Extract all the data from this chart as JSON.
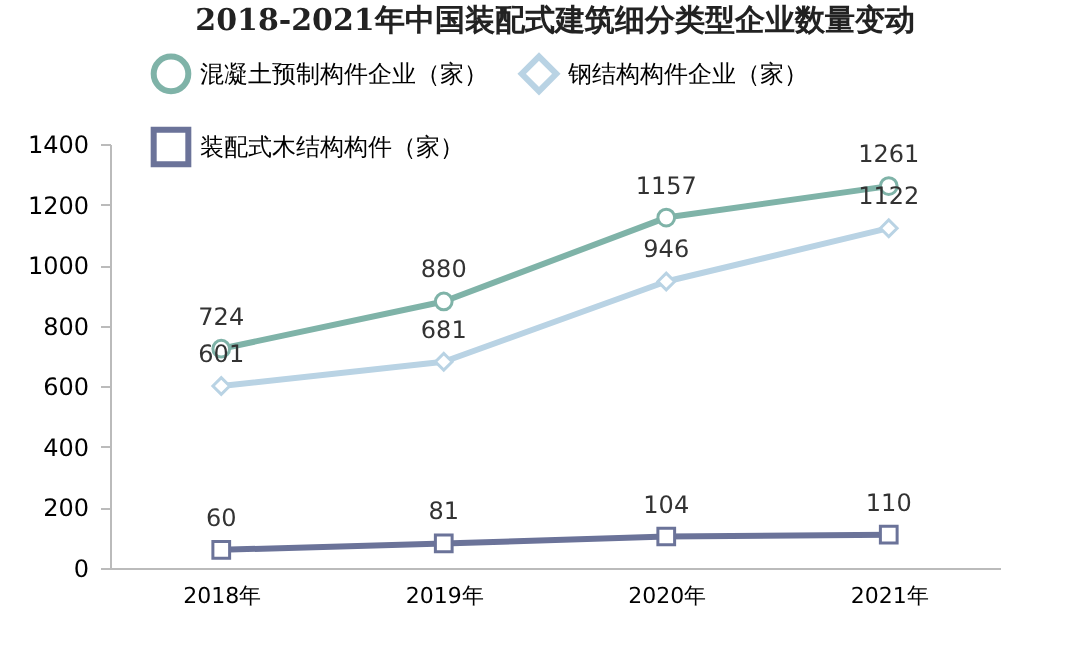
{
  "chart_data": {
    "type": "line",
    "title": "2018-2021年中国装配式建筑细分类型企业数量变动",
    "categories": [
      "2018年",
      "2019年",
      "2020年",
      "2021年"
    ],
    "series": [
      {
        "name": "混凝土预制构件企业（家）",
        "color": "#7fb3a8",
        "marker": "circle",
        "values": [
          724,
          880,
          1157,
          1261
        ]
      },
      {
        "name": "钢结构构件企业（家）",
        "color": "#b9d3e4",
        "marker": "diamond",
        "values": [
          601,
          681,
          946,
          1122
        ]
      },
      {
        "name": "装配式木结构构件（家）",
        "color": "#6b7399",
        "marker": "square",
        "values": [
          60,
          81,
          104,
          110
        ]
      }
    ],
    "ylim": [
      0,
      1400
    ],
    "yticks": [
      0,
      200,
      400,
      600,
      800,
      1000,
      1200,
      1400
    ],
    "grid": false,
    "legend": "top left",
    "data_labels": true
  }
}
